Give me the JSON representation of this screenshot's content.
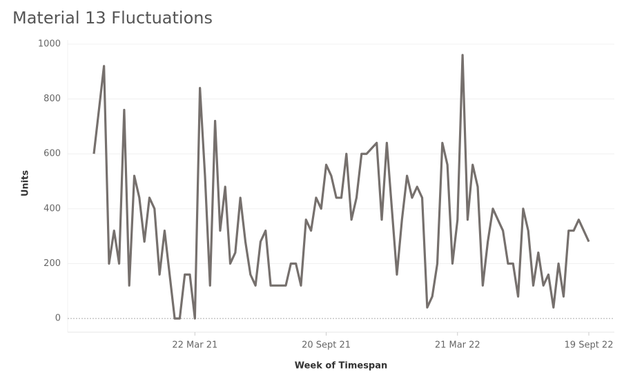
{
  "chart_data": {
    "type": "line",
    "title": "Material 13 Fluctuations",
    "x_label": "Week of Timespan",
    "y_label": "Units",
    "categories": [
      null,
      null,
      null,
      null,
      null,
      null,
      null,
      null,
      null,
      null,
      null,
      null,
      null,
      null,
      null,
      null,
      null,
      null,
      null,
      null,
      "22 Mar 21",
      null,
      null,
      null,
      null,
      null,
      null,
      null,
      null,
      null,
      null,
      null,
      null,
      null,
      null,
      null,
      null,
      null,
      null,
      null,
      null,
      null,
      null,
      null,
      null,
      null,
      "20 Sept 21",
      null,
      null,
      null,
      null,
      null,
      null,
      null,
      null,
      null,
      null,
      null,
      null,
      null,
      null,
      null,
      null,
      null,
      null,
      null,
      null,
      null,
      null,
      null,
      null,
      null,
      "21 Mar 22",
      null,
      null,
      null,
      null,
      null,
      null,
      null,
      null,
      null,
      null,
      null,
      null,
      null,
      null,
      null,
      null,
      null,
      null,
      null,
      null,
      null,
      null,
      null,
      null,
      null,
      "19 Sept 22"
    ],
    "series": [
      {
        "name": "Units",
        "color": "#76706d",
        "values": [
          600,
          760,
          920,
          200,
          320,
          200,
          760,
          120,
          520,
          440,
          280,
          440,
          400,
          160,
          320,
          160,
          0,
          0,
          160,
          160,
          0,
          840,
          520,
          120,
          720,
          320,
          480,
          200,
          240,
          440,
          280,
          160,
          120,
          280,
          320,
          120,
          120,
          120,
          120,
          200,
          200,
          120,
          360,
          320,
          440,
          400,
          560,
          520,
          440,
          440,
          600,
          360,
          440,
          600,
          600,
          620,
          640,
          360,
          640,
          400,
          160,
          360,
          520,
          440,
          480,
          440,
          40,
          80,
          200,
          640,
          560,
          200,
          360,
          960,
          360,
          560,
          480,
          120,
          280,
          400,
          360,
          320,
          200,
          200,
          80,
          400,
          320,
          120,
          240,
          120,
          160,
          40,
          200,
          80,
          320,
          320,
          360,
          320,
          280
        ]
      }
    ],
    "ylim": [
      -50,
      1015
    ],
    "yticks": [
      0,
      200,
      400,
      600,
      800,
      1000
    ],
    "grid": true
  }
}
